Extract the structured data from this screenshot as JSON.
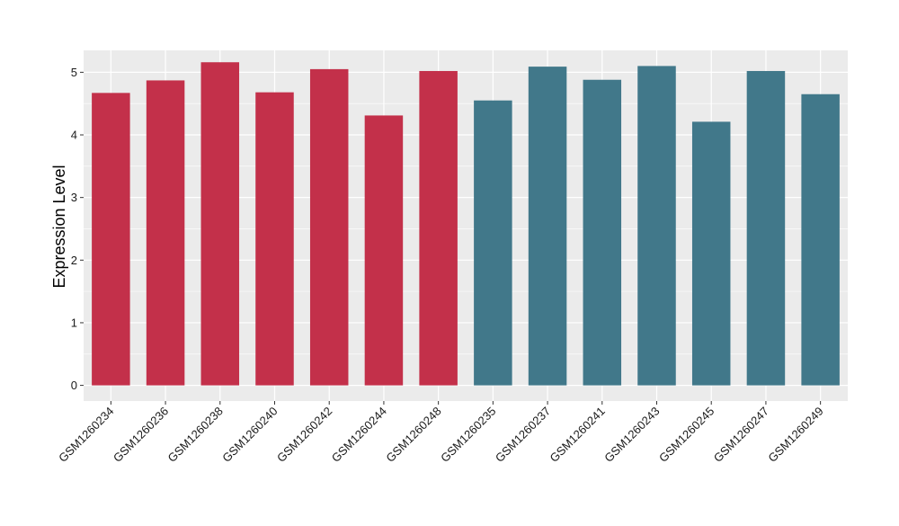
{
  "chart_data": {
    "type": "bar",
    "title": "",
    "xlabel": "",
    "ylabel": "Expression Level",
    "ylim": [
      -0.25,
      5.35
    ],
    "yticks": [
      0,
      1,
      2,
      3,
      4,
      5
    ],
    "grid": true,
    "legend": "none",
    "colors": {
      "panel_background": "#ebebeb",
      "grid": "#ffffff",
      "group_a": "#c3304a",
      "group_b": "#41788a"
    },
    "categories": [
      "GSM1260234",
      "GSM1260236",
      "GSM1260238",
      "GSM1260240",
      "GSM1260242",
      "GSM1260244",
      "GSM1260248",
      "GSM1260235",
      "GSM1260237",
      "GSM1260241",
      "GSM1260243",
      "GSM1260245",
      "GSM1260247",
      "GSM1260249"
    ],
    "values": [
      4.67,
      4.87,
      5.16,
      4.68,
      5.05,
      4.31,
      5.02,
      4.55,
      5.09,
      4.88,
      5.1,
      4.21,
      5.02,
      4.65
    ],
    "bar_colors": [
      "#c3304a",
      "#c3304a",
      "#c3304a",
      "#c3304a",
      "#c3304a",
      "#c3304a",
      "#c3304a",
      "#41788a",
      "#41788a",
      "#41788a",
      "#41788a",
      "#41788a",
      "#41788a",
      "#41788a"
    ]
  }
}
